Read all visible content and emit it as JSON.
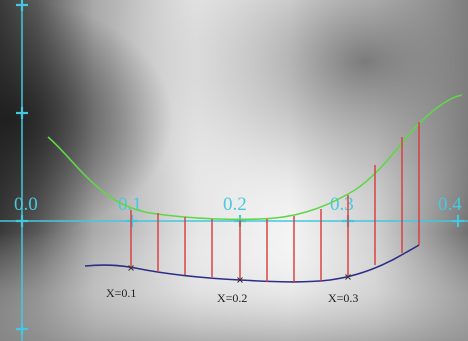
{
  "scale_labels": [
    "0.0",
    "0.1",
    "0.2",
    "0.3",
    "0.4"
  ],
  "marker_labels": [
    "X=0.1",
    "X=0.2",
    "X=0.3"
  ],
  "colors": {
    "axis": "#43c8df",
    "upper_curve": "#62d64a",
    "lower_curve": "#2c2f86",
    "measurement_lines": "#d93a3a",
    "marker": "#333333"
  }
}
